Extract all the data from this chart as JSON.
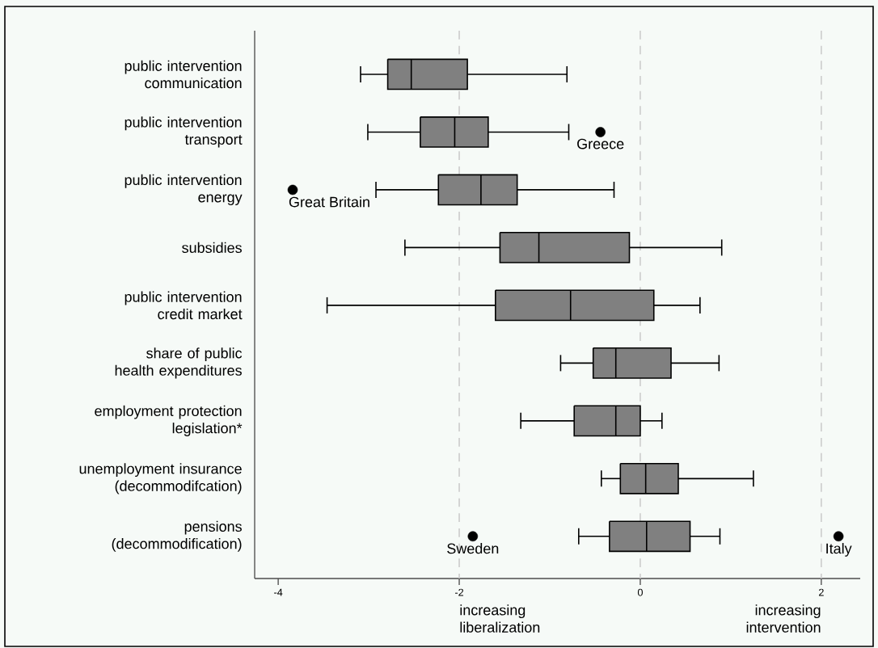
{
  "chart_data": {
    "type": "box",
    "orientation": "horizontal",
    "color": "#808080",
    "categories": [
      "public intervention\ncommunication",
      "public intervention\ntransport",
      "public intervention\nenergy",
      "subsidies",
      "public intervention\ncredit market",
      "share of public\nhealth expenditures",
      "employment protection\nlegislation*",
      "unemployment insurance\n(decommodifcation)",
      "pensions\n(decommodification)"
    ],
    "boxes": [
      {
        "low": -3.09,
        "q1": -2.79,
        "median": -2.53,
        "q3": -1.91,
        "high": -0.81
      },
      {
        "low": -3.01,
        "q1": -2.43,
        "median": -2.05,
        "q3": -1.68,
        "high": -0.79,
        "outliers": [
          -0.44
        ]
      },
      {
        "low": -2.92,
        "q1": -2.23,
        "median": -1.76,
        "q3": -1.36,
        "high": -0.29,
        "outliers": [
          -3.84
        ]
      },
      {
        "low": -2.6,
        "q1": -1.55,
        "median": -1.12,
        "q3": -0.12,
        "high": 0.9
      },
      {
        "low": -3.46,
        "q1": -1.6,
        "median": -0.77,
        "q3": 0.15,
        "high": 0.66
      },
      {
        "low": -0.88,
        "q1": -0.52,
        "median": -0.27,
        "q3": 0.34,
        "high": 0.87
      },
      {
        "low": -1.32,
        "q1": -0.73,
        "median": -0.27,
        "q3": 0.0,
        "high": 0.24
      },
      {
        "low": -0.43,
        "q1": -0.22,
        "median": 0.06,
        "q3": 0.42,
        "high": 1.25
      },
      {
        "low": -0.68,
        "q1": -0.34,
        "median": 0.07,
        "q3": 0.55,
        "high": 0.88,
        "outliers": [
          -1.85,
          2.19
        ]
      }
    ],
    "xlim": [
      -4.26,
      2.43
    ],
    "xticks": [
      -4,
      -2,
      0,
      2
    ],
    "ref_lines": [
      {
        "axis": "x",
        "value": -2,
        "color": "#cccccc",
        "line_style": "dashed"
      },
      {
        "axis": "x",
        "value": 0,
        "color": "#cccccc",
        "line_style": "dashed"
      },
      {
        "axis": "x",
        "value": 2,
        "color": "#cccccc",
        "line_style": "dashed"
      }
    ],
    "annotations": [
      "increasing\nliberalization",
      "increasing\nintervention",
      "Greece",
      "Great Britain",
      "Sweden",
      "Italy"
    ]
  }
}
